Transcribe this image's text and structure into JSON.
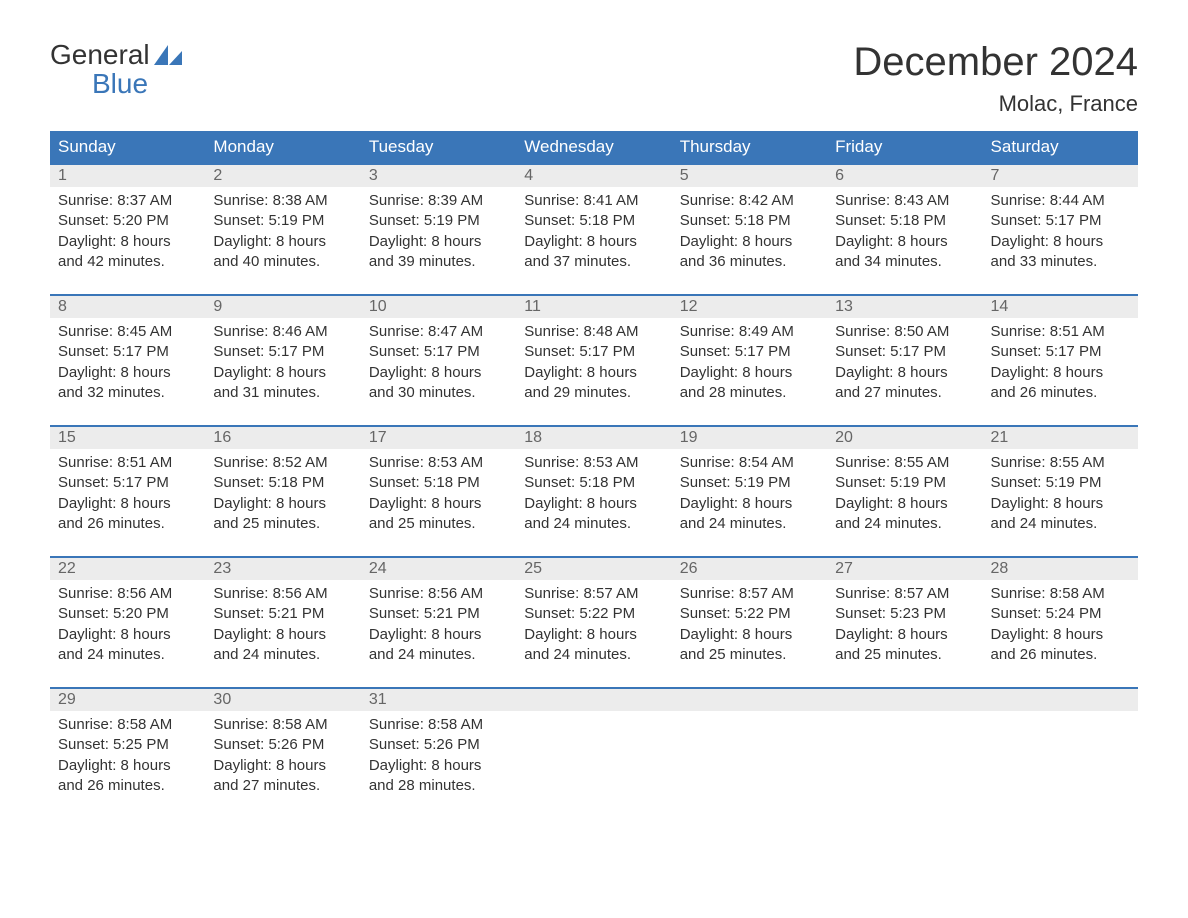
{
  "logo": {
    "top": "General",
    "bottom": "Blue"
  },
  "title": "December 2024",
  "location": "Molac, France",
  "weekdays": [
    "Sunday",
    "Monday",
    "Tuesday",
    "Wednesday",
    "Thursday",
    "Friday",
    "Saturday"
  ],
  "colors": {
    "header_bg": "#3a76b8",
    "header_text": "#ffffff",
    "daynum_bg": "#ececec",
    "row_border": "#3a76b8",
    "logo_blue": "#3a76b8"
  },
  "weeks": [
    [
      {
        "n": "1",
        "sunrise": "8:37 AM",
        "sunset": "5:20 PM",
        "daylight": "8 hours and 42 minutes."
      },
      {
        "n": "2",
        "sunrise": "8:38 AM",
        "sunset": "5:19 PM",
        "daylight": "8 hours and 40 minutes."
      },
      {
        "n": "3",
        "sunrise": "8:39 AM",
        "sunset": "5:19 PM",
        "daylight": "8 hours and 39 minutes."
      },
      {
        "n": "4",
        "sunrise": "8:41 AM",
        "sunset": "5:18 PM",
        "daylight": "8 hours and 37 minutes."
      },
      {
        "n": "5",
        "sunrise": "8:42 AM",
        "sunset": "5:18 PM",
        "daylight": "8 hours and 36 minutes."
      },
      {
        "n": "6",
        "sunrise": "8:43 AM",
        "sunset": "5:18 PM",
        "daylight": "8 hours and 34 minutes."
      },
      {
        "n": "7",
        "sunrise": "8:44 AM",
        "sunset": "5:17 PM",
        "daylight": "8 hours and 33 minutes."
      }
    ],
    [
      {
        "n": "8",
        "sunrise": "8:45 AM",
        "sunset": "5:17 PM",
        "daylight": "8 hours and 32 minutes."
      },
      {
        "n": "9",
        "sunrise": "8:46 AM",
        "sunset": "5:17 PM",
        "daylight": "8 hours and 31 minutes."
      },
      {
        "n": "10",
        "sunrise": "8:47 AM",
        "sunset": "5:17 PM",
        "daylight": "8 hours and 30 minutes."
      },
      {
        "n": "11",
        "sunrise": "8:48 AM",
        "sunset": "5:17 PM",
        "daylight": "8 hours and 29 minutes."
      },
      {
        "n": "12",
        "sunrise": "8:49 AM",
        "sunset": "5:17 PM",
        "daylight": "8 hours and 28 minutes."
      },
      {
        "n": "13",
        "sunrise": "8:50 AM",
        "sunset": "5:17 PM",
        "daylight": "8 hours and 27 minutes."
      },
      {
        "n": "14",
        "sunrise": "8:51 AM",
        "sunset": "5:17 PM",
        "daylight": "8 hours and 26 minutes."
      }
    ],
    [
      {
        "n": "15",
        "sunrise": "8:51 AM",
        "sunset": "5:17 PM",
        "daylight": "8 hours and 26 minutes."
      },
      {
        "n": "16",
        "sunrise": "8:52 AM",
        "sunset": "5:18 PM",
        "daylight": "8 hours and 25 minutes."
      },
      {
        "n": "17",
        "sunrise": "8:53 AM",
        "sunset": "5:18 PM",
        "daylight": "8 hours and 25 minutes."
      },
      {
        "n": "18",
        "sunrise": "8:53 AM",
        "sunset": "5:18 PM",
        "daylight": "8 hours and 24 minutes."
      },
      {
        "n": "19",
        "sunrise": "8:54 AM",
        "sunset": "5:19 PM",
        "daylight": "8 hours and 24 minutes."
      },
      {
        "n": "20",
        "sunrise": "8:55 AM",
        "sunset": "5:19 PM",
        "daylight": "8 hours and 24 minutes."
      },
      {
        "n": "21",
        "sunrise": "8:55 AM",
        "sunset": "5:19 PM",
        "daylight": "8 hours and 24 minutes."
      }
    ],
    [
      {
        "n": "22",
        "sunrise": "8:56 AM",
        "sunset": "5:20 PM",
        "daylight": "8 hours and 24 minutes."
      },
      {
        "n": "23",
        "sunrise": "8:56 AM",
        "sunset": "5:21 PM",
        "daylight": "8 hours and 24 minutes."
      },
      {
        "n": "24",
        "sunrise": "8:56 AM",
        "sunset": "5:21 PM",
        "daylight": "8 hours and 24 minutes."
      },
      {
        "n": "25",
        "sunrise": "8:57 AM",
        "sunset": "5:22 PM",
        "daylight": "8 hours and 24 minutes."
      },
      {
        "n": "26",
        "sunrise": "8:57 AM",
        "sunset": "5:22 PM",
        "daylight": "8 hours and 25 minutes."
      },
      {
        "n": "27",
        "sunrise": "8:57 AM",
        "sunset": "5:23 PM",
        "daylight": "8 hours and 25 minutes."
      },
      {
        "n": "28",
        "sunrise": "8:58 AM",
        "sunset": "5:24 PM",
        "daylight": "8 hours and 26 minutes."
      }
    ],
    [
      {
        "n": "29",
        "sunrise": "8:58 AM",
        "sunset": "5:25 PM",
        "daylight": "8 hours and 26 minutes."
      },
      {
        "n": "30",
        "sunrise": "8:58 AM",
        "sunset": "5:26 PM",
        "daylight": "8 hours and 27 minutes."
      },
      {
        "n": "31",
        "sunrise": "8:58 AM",
        "sunset": "5:26 PM",
        "daylight": "8 hours and 28 minutes."
      },
      null,
      null,
      null,
      null
    ]
  ],
  "labels": {
    "sunrise": "Sunrise:",
    "sunset": "Sunset:",
    "daylight": "Daylight:"
  }
}
